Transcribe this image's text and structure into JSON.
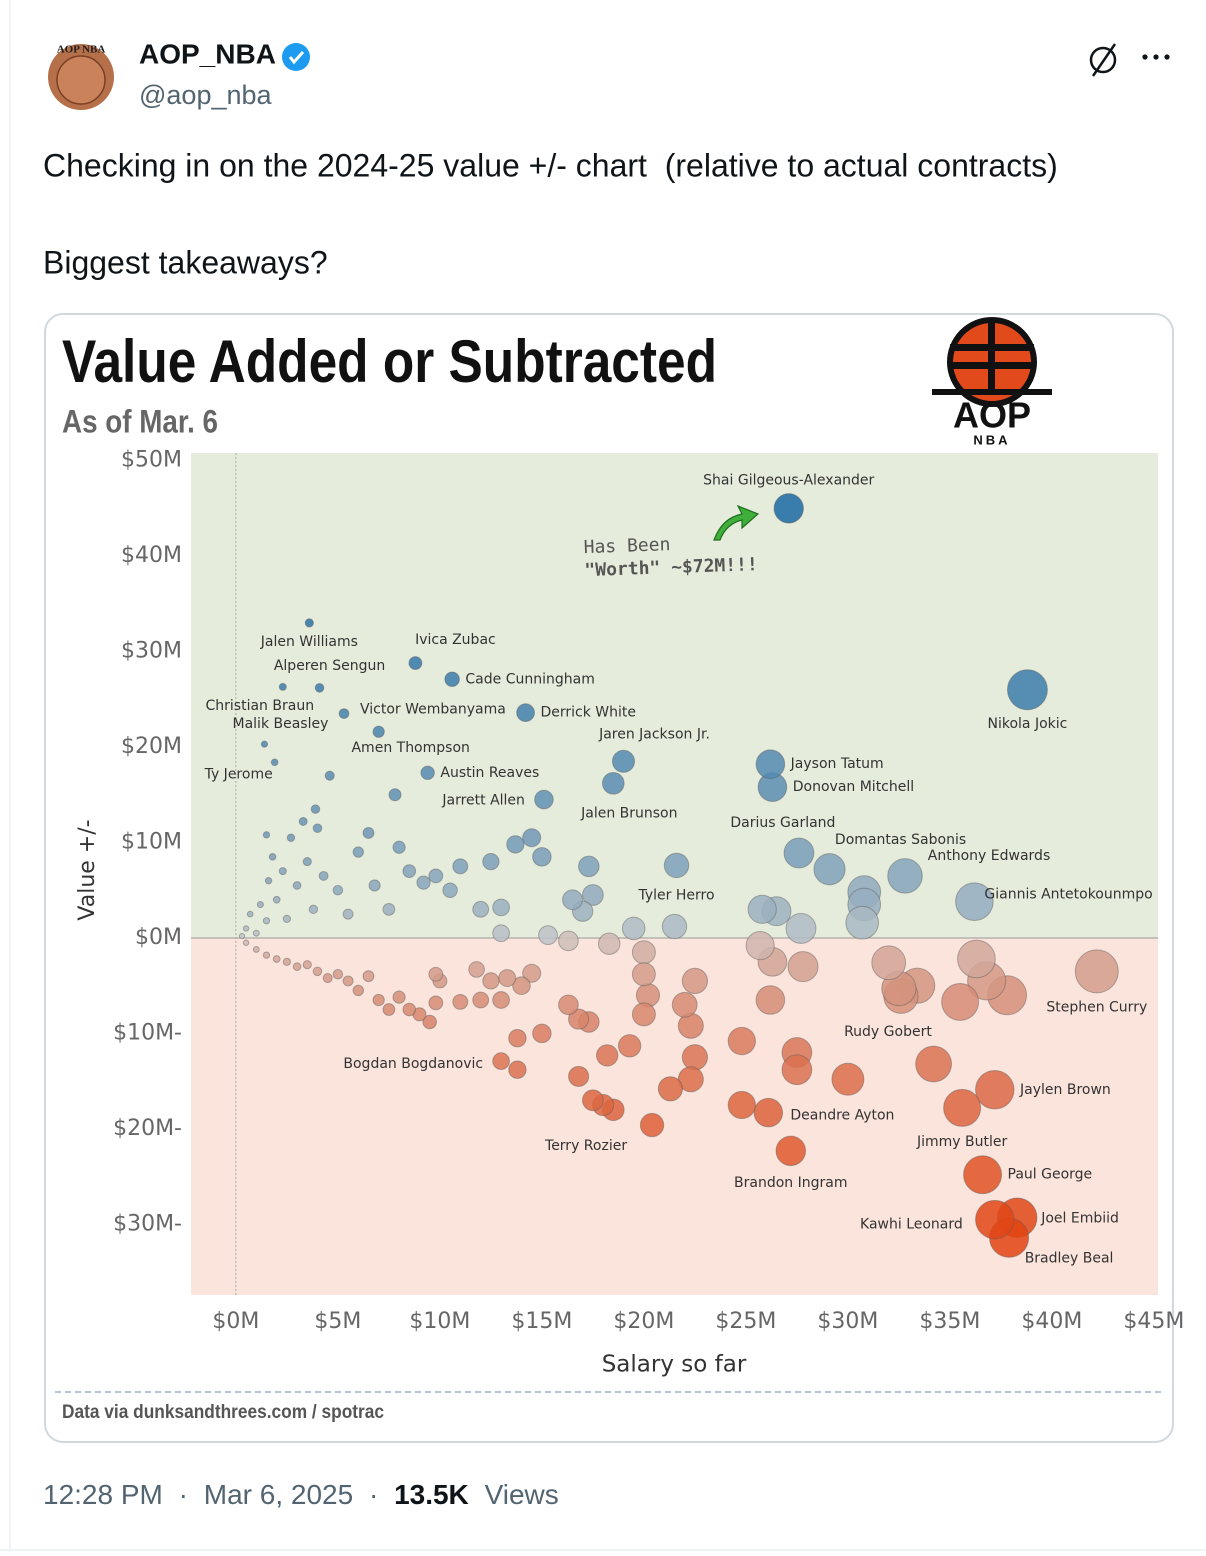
{
  "post": {
    "name": "AOP_NBA",
    "handle": "@aop_nba",
    "avatar_text": "AOP NBA",
    "text": [
      "Checking in on the 2024-25 value +/- chart  (relative to actual contracts)",
      "Biggest takeaways?"
    ],
    "time": "12:28 PM",
    "separator": "·",
    "date": "Mar 6, 2025",
    "views": "13.5K",
    "views_label": "Views"
  },
  "chart_data": {
    "type": "scatter",
    "title": "Value Added or Subtracted",
    "subtitle": "As of Mar. 6",
    "logo": {
      "title": "AOP",
      "subtitle": "NBA"
    },
    "annotation": [
      "Has Been",
      "\"Worth\" ~$72M!!!"
    ],
    "x_label": "Salary so far",
    "y_label": "Value +/-",
    "source": "Data via dunksandthrees.com / spotrac",
    "xlim": [
      -2.2,
      45.2
    ],
    "ylim": [
      -37.4,
      50.8
    ],
    "xticks": [
      {
        "value": 0,
        "label": "$0M"
      },
      {
        "value": 5,
        "label": "$5M"
      },
      {
        "value": 10,
        "label": "$10M"
      },
      {
        "value": 15,
        "label": "$15M"
      },
      {
        "value": 20,
        "label": "$20M"
      },
      {
        "value": 25,
        "label": "$25M"
      },
      {
        "value": 30,
        "label": "$30M"
      },
      {
        "value": 35,
        "label": "$35M"
      },
      {
        "value": 40,
        "label": "$40M"
      },
      {
        "value": 45,
        "label": "$45M"
      }
    ],
    "yticks": [
      {
        "value": 50,
        "label": "$50M"
      },
      {
        "value": 40,
        "label": "$40M"
      },
      {
        "value": 30,
        "label": "$30M"
      },
      {
        "value": 20,
        "label": "$20M"
      },
      {
        "value": 10,
        "label": "$10M"
      },
      {
        "value": 0,
        "label": "$0M"
      },
      {
        "value": -10,
        "label": "$10M-"
      },
      {
        "value": -20,
        "label": "$20M-"
      },
      {
        "value": -30,
        "label": "$30M-"
      }
    ],
    "colors": {
      "positive": "#1a6aa3",
      "neutral": "#cbcbcb",
      "negative": "#e2420f",
      "positive_bg": "#e6ecdb",
      "negative_bg": "#fbe4dc"
    },
    "x": [
      27.1,
      38.8,
      3.6,
      4.1,
      8.8,
      10.6,
      2.3,
      5.3,
      14.2,
      1.4,
      7.0,
      19.0,
      1.9,
      9.4,
      26.2,
      26.3,
      15.1,
      18.5,
      27.6,
      29.1,
      32.8,
      21.6,
      36.2,
      42.2,
      32.6,
      13.0,
      37.2,
      26.1,
      20.4,
      35.6,
      27.2,
      36.6,
      37.2,
      38.3,
      37.9,
      0.3,
      0.5,
      0.7,
      1.0,
      1.2,
      1.5,
      1.6,
      1.5,
      1.8,
      2.0,
      2.3,
      2.5,
      2.7,
      3.0,
      3.3,
      3.5,
      3.8,
      3.9,
      4.0,
      4.3,
      4.6,
      5.0,
      5.5,
      6.0,
      6.5,
      6.8,
      7.5,
      7.8,
      8.0,
      8.5,
      9.2,
      9.8,
      10.5,
      11.0,
      12.0,
      12.5,
      13.0,
      13.7,
      14.5,
      15.0,
      16.5,
      17.3,
      17.0,
      17.5,
      19.5,
      21.5,
      25.8,
      26.5,
      27.7,
      30.8,
      30.8,
      30.7,
      13.0,
      15.3,
      16.3,
      18.3,
      20.0,
      25.7,
      26.3,
      27.8,
      32.0,
      36.3,
      0.5,
      1.0,
      1.5,
      2.0,
      2.5,
      3.0,
      3.5,
      4.0,
      4.5,
      5.0,
      5.5,
      6.0,
      6.5,
      7.0,
      7.5,
      8.0,
      8.5,
      9.0,
      9.5,
      9.8,
      9.8,
      10.0,
      11.0,
      12.0,
      11.8,
      12.5,
      13.0,
      13.3,
      14.0,
      14.5,
      13.8,
      15.0,
      13.8,
      16.3,
      16.8,
      17.3,
      16.8,
      17.5,
      18.0,
      18.5,
      18.2,
      19.3,
      20.0,
      20.2,
      20.0,
      21.3,
      22.0,
      22.3,
      22.5,
      22.3,
      22.5,
      24.8,
      24.8,
      26.2,
      27.5,
      27.5,
      30.0,
      32.5,
      33.4,
      34.2,
      35.5,
      36.8,
      37.8
    ],
    "y": [
      45.0,
      26.0,
      33.0,
      26.2,
      28.8,
      27.1,
      26.3,
      23.5,
      23.6,
      20.3,
      21.6,
      18.5,
      18.4,
      17.3,
      18.2,
      15.8,
      14.5,
      16.2,
      8.9,
      7.2,
      6.5,
      7.6,
      3.8,
      -3.5,
      -6.1,
      -12.9,
      -15.9,
      -18.3,
      -19.6,
      -17.8,
      -22.3,
      -24.8,
      -29.5,
      -29.3,
      -31.4,
      0.2,
      1.0,
      2.5,
      0.5,
      3.5,
      1.8,
      6.0,
      10.8,
      8.5,
      4.0,
      7.0,
      2.0,
      10.5,
      5.5,
      12.2,
      8.0,
      3.0,
      13.5,
      11.5,
      6.5,
      17.0,
      5.0,
      2.5,
      9.0,
      11.0,
      5.5,
      3.0,
      15.0,
      9.5,
      7.0,
      5.8,
      6.5,
      5.0,
      7.5,
      3.0,
      8.0,
      3.2,
      9.8,
      10.5,
      8.5,
      4.0,
      7.5,
      2.8,
      4.5,
      1.0,
      1.2,
      3.0,
      2.8,
      1.0,
      4.8,
      3.5,
      1.6,
      0.5,
      0.3,
      -0.3,
      -0.6,
      -1.5,
      -0.8,
      -2.5,
      -3.0,
      -2.6,
      -2.2,
      -0.5,
      -1.2,
      -1.8,
      -2.2,
      -2.5,
      -3.0,
      -2.8,
      -3.5,
      -4.2,
      -3.8,
      -4.5,
      -5.5,
      -4.0,
      -6.5,
      -7.5,
      -6.2,
      -7.5,
      -8.0,
      -8.8,
      -6.8,
      -3.8,
      -4.5,
      -6.7,
      -6.5,
      -3.3,
      -4.5,
      -6.5,
      -4.2,
      -5.0,
      -3.7,
      -10.5,
      -10.0,
      -13.8,
      -7.0,
      -8.5,
      -8.8,
      -14.5,
      -17.0,
      -17.5,
      -18.0,
      -12.3,
      -11.3,
      -3.8,
      -6.0,
      -8.0,
      -15.8,
      -7.0,
      -9.2,
      -12.5,
      -14.8,
      -4.5,
      -10.8,
      -17.5,
      -6.5,
      -12.0,
      -13.8,
      -14.8,
      -5.3,
      -5.0,
      -13.2,
      -6.7,
      -4.5,
      -6.0
    ],
    "labels": [
      "Shai Gilgeous-Alexander",
      "Nikola Jokic",
      "Jalen Williams",
      "Alperen Sengun",
      "Ivica Zubac",
      "Cade Cunningham",
      "Christian Braun",
      "Victor Wembanyama",
      "Derrick White",
      "Malik Beasley",
      "Amen Thompson",
      "Jaren Jackson Jr.",
      "Ty Jerome",
      "Austin Reaves",
      "Jayson Tatum",
      "Donovan Mitchell",
      "Jarrett Allen",
      "Jalen Brunson",
      "Darius Garland",
      "Domantas Sabonis",
      "Anthony Edwards",
      "Tyler Herro",
      "Giannis Antetokounmpo",
      "Stephen Curry",
      "Rudy Gobert",
      "Bogdan Bogdanovic",
      "Jaylen Brown",
      "Deandre Ayton",
      "Terry Rozier",
      "Jimmy Butler",
      "Brandon Ingram",
      "Paul George",
      "Kawhi Leonard",
      "Joel Embiid",
      "Bradley Beal",
      null,
      null,
      null,
      null,
      null,
      null,
      null,
      null,
      null,
      null,
      null,
      null,
      null,
      null,
      null,
      null,
      null,
      null,
      null,
      null,
      null,
      null,
      null,
      null,
      null,
      null,
      null,
      null,
      null,
      null,
      null,
      null,
      null,
      null,
      null,
      null,
      null,
      null,
      null,
      null,
      null,
      null,
      null,
      null,
      null,
      null,
      null,
      null,
      null,
      null,
      null,
      null,
      null,
      null,
      null,
      null,
      null,
      null,
      null,
      null,
      null,
      null,
      null,
      null,
      null,
      null,
      null,
      null,
      null,
      null,
      null,
      null,
      null,
      null,
      null,
      null,
      null,
      null,
      null,
      null,
      null,
      null,
      null,
      null,
      null,
      null,
      null,
      null,
      null,
      null,
      null,
      null,
      null,
      null,
      null,
      null,
      null,
      null,
      null,
      null,
      null,
      null,
      null,
      null,
      null,
      null,
      null,
      null,
      null,
      null,
      null,
      null,
      null,
      null,
      null,
      null,
      null,
      null,
      null,
      null,
      null,
      null,
      null,
      null,
      null
    ]
  }
}
